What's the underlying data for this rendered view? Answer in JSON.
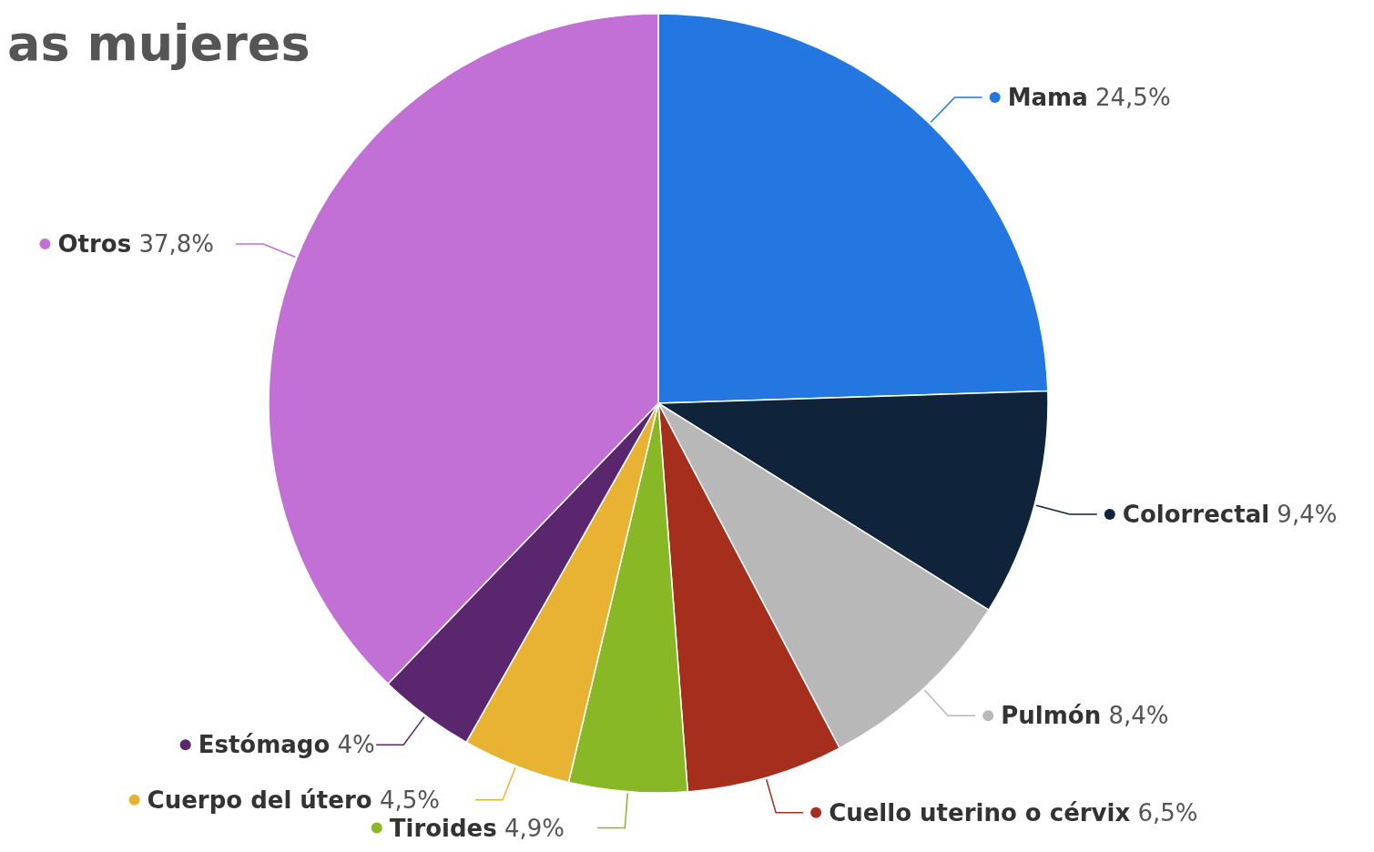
{
  "chart_data": {
    "type": "pie",
    "title": "as mujeres",
    "categories": [
      "Mama",
      "Colorrectal",
      "Pulmón",
      "Cuello uterino o cérvix",
      "Tiroides",
      "Cuerpo del útero",
      "Estómago",
      "Otros"
    ],
    "values": [
      24.5,
      9.4,
      8.4,
      6.5,
      4.9,
      4.5,
      4,
      37.8
    ],
    "value_labels": [
      "24,5%",
      "9,4%",
      "8,4%",
      "6,5%",
      "4,9%",
      "4,5%",
      "4%",
      "37,8%"
    ],
    "colors": [
      "#2476e0",
      "#0f233b",
      "#b8b8b8",
      "#a52e1d",
      "#88b826",
      "#e8b232",
      "#5a266e",
      "#c270d6"
    ],
    "legend": "right"
  }
}
